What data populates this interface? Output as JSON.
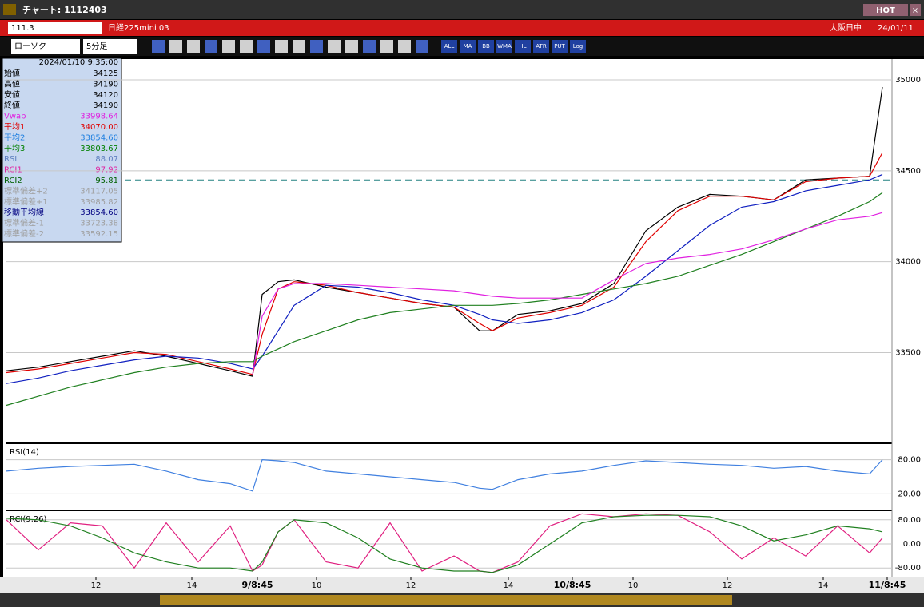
{
  "window": {
    "title": "チャート: 1112403",
    "badge": "HOT"
  },
  "toolbar": {
    "code": "111.3",
    "name": "日経225mini 03",
    "session": "大阪日中",
    "date": "24/01/11",
    "chart_kind": "ローソク",
    "interval": "5分足",
    "icons": [
      "ALL",
      "MA",
      "BB",
      "WMA",
      "HL",
      "ATR",
      "PUT",
      "Log"
    ]
  },
  "info_panel": {
    "timestamp": "2024/01/10 9:35:00",
    "rows": [
      {
        "label": "始値",
        "value": "34125",
        "color": "#000000"
      },
      {
        "label": "高値",
        "value": "34190",
        "color": "#000000"
      },
      {
        "label": "安値",
        "value": "34120",
        "color": "#000000"
      },
      {
        "label": "終値",
        "value": "34190",
        "color": "#000000"
      },
      {
        "label": "Vwap",
        "value": "33998.64",
        "color": "#e020e0"
      },
      {
        "label": "平均1",
        "value": "34070.00",
        "color": "#e00000"
      },
      {
        "label": "平均2",
        "value": "33854.60",
        "color": "#2080e0"
      },
      {
        "label": "平均3",
        "value": "33803.67",
        "color": "#008000"
      },
      {
        "label": "RSI",
        "value": "88.07",
        "color": "#6080c0"
      },
      {
        "label": "RCI1",
        "value": "97.92",
        "color": "#e020a0"
      },
      {
        "label": "RCI2",
        "value": "95.81",
        "color": "#006000"
      },
      {
        "label": "標準偏差+2",
        "value": "34117.05",
        "color": "#a0a0a0"
      },
      {
        "label": "標準偏差+1",
        "value": "33985.82",
        "color": "#a0a0a0"
      },
      {
        "label": "移動平均線",
        "value": "33854.60",
        "color": "#000080"
      },
      {
        "label": "標準偏差-1",
        "value": "33723.38",
        "color": "#a0a0a0"
      },
      {
        "label": "標準偏差-2",
        "value": "33592.15",
        "color": "#a0a0a0"
      }
    ]
  },
  "chart_data": [
    {
      "type": "line",
      "panel": "price",
      "xlim": [
        0,
        277
      ],
      "ylim": [
        33010,
        35110
      ],
      "yticks": [
        35000,
        34500,
        34000,
        33500
      ],
      "reference_line": 34450,
      "x": [
        0,
        10,
        20,
        30,
        40,
        50,
        60,
        70,
        77,
        80,
        85,
        90,
        100,
        110,
        120,
        130,
        140,
        148,
        152,
        160,
        170,
        180,
        190,
        200,
        210,
        220,
        230,
        240,
        250,
        260,
        270,
        274
      ],
      "series": [
        {
          "color": "#000000",
          "values": [
            33400,
            33420,
            33450,
            33480,
            33510,
            33480,
            33440,
            33400,
            33370,
            33820,
            33890,
            33900,
            33860,
            33830,
            33800,
            33770,
            33750,
            33620,
            33620,
            33710,
            33730,
            33770,
            33880,
            34170,
            34300,
            34370,
            34360,
            34340,
            34450,
            34460,
            34470,
            34960
          ]
        },
        {
          "color": "#e00000",
          "values": [
            33390,
            33410,
            33440,
            33470,
            33500,
            33490,
            33450,
            33410,
            33380,
            33600,
            33850,
            33890,
            33870,
            33830,
            33800,
            33770,
            33750,
            33660,
            33620,
            33690,
            33720,
            33760,
            33860,
            34110,
            34280,
            34360,
            34360,
            34340,
            34440,
            34460,
            34470,
            34600
          ]
        },
        {
          "color": "#1020c0",
          "values": [
            33330,
            33360,
            33400,
            33430,
            33460,
            33480,
            33470,
            33440,
            33410,
            33480,
            33620,
            33760,
            33870,
            33860,
            33830,
            33790,
            33760,
            33710,
            33680,
            33660,
            33680,
            33720,
            33790,
            33920,
            34060,
            34200,
            34300,
            34330,
            34390,
            34420,
            34450,
            34480
          ]
        },
        {
          "color": "#208020",
          "values": [
            33210,
            33260,
            33310,
            33350,
            33390,
            33420,
            33440,
            33450,
            33450,
            33480,
            33520,
            33560,
            33620,
            33680,
            33720,
            33740,
            33760,
            33760,
            33760,
            33770,
            33790,
            33820,
            33850,
            33880,
            33920,
            33980,
            34040,
            34110,
            34180,
            34250,
            34330,
            34380
          ]
        },
        {
          "color": "#e020e0",
          "values": [
            null,
            null,
            null,
            null,
            null,
            null,
            null,
            null,
            33380,
            33700,
            33850,
            33880,
            33880,
            33870,
            33860,
            33850,
            33840,
            33820,
            33810,
            33800,
            33800,
            33800,
            33900,
            33990,
            34020,
            34040,
            34070,
            34120,
            34180,
            34230,
            34250,
            34270
          ]
        }
      ]
    },
    {
      "type": "line",
      "panel": "rsi",
      "title": "RSI(14)",
      "xlim": [
        0,
        277
      ],
      "ylim": [
        -6,
        106
      ],
      "yticks": [
        {
          "value": 80,
          "label": "80.00"
        },
        {
          "value": 20,
          "label": "20.00"
        }
      ],
      "x": [
        0,
        10,
        20,
        30,
        40,
        50,
        60,
        70,
        77,
        80,
        85,
        90,
        100,
        110,
        120,
        130,
        140,
        148,
        152,
        160,
        170,
        180,
        190,
        200,
        210,
        220,
        230,
        240,
        250,
        260,
        270,
        274
      ],
      "series": [
        {
          "color": "#4080e0",
          "values": [
            60,
            65,
            68,
            70,
            72,
            60,
            45,
            38,
            25,
            80,
            78,
            75,
            60,
            55,
            50,
            45,
            40,
            30,
            28,
            45,
            55,
            60,
            70,
            78,
            75,
            72,
            70,
            65,
            68,
            60,
            55,
            80
          ]
        }
      ]
    },
    {
      "type": "line",
      "panel": "rci",
      "title": "RCI(9,26)",
      "xlim": [
        0,
        277
      ],
      "ylim": [
        -106,
        106
      ],
      "yticks": [
        {
          "value": 80,
          "label": "80.00"
        },
        {
          "value": 0,
          "label": "0.00"
        },
        {
          "value": -80,
          "label": "-80.00"
        }
      ],
      "x": [
        0,
        10,
        20,
        30,
        40,
        50,
        60,
        70,
        77,
        80,
        85,
        90,
        100,
        110,
        120,
        130,
        140,
        148,
        152,
        160,
        170,
        180,
        190,
        200,
        210,
        220,
        230,
        240,
        250,
        260,
        270,
        274
      ],
      "series": [
        {
          "color": "#e02080",
          "values": [
            80,
            -20,
            70,
            60,
            -80,
            70,
            -60,
            60,
            -90,
            -70,
            40,
            80,
            -60,
            -80,
            70,
            -90,
            -40,
            -90,
            -95,
            -60,
            60,
            100,
            90,
            100,
            95,
            40,
            -50,
            20,
            -40,
            60,
            -30,
            20
          ]
        },
        {
          "color": "#208020",
          "values": [
            85,
            80,
            60,
            20,
            -30,
            -60,
            -80,
            -80,
            -90,
            -60,
            40,
            80,
            70,
            20,
            -50,
            -80,
            -90,
            -90,
            -95,
            -70,
            0,
            70,
            90,
            95,
            95,
            90,
            60,
            10,
            30,
            60,
            50,
            40
          ]
        }
      ]
    }
  ],
  "x_axis": {
    "ticks": [
      {
        "value": 28,
        "label": "12"
      },
      {
        "value": 58,
        "label": "14"
      },
      {
        "value": 78.5,
        "label": "9/8:45"
      },
      {
        "value": 97,
        "label": "10"
      },
      {
        "value": 126.5,
        "label": "12"
      },
      {
        "value": 157,
        "label": "14"
      },
      {
        "value": 177,
        "label": "10/8:45"
      },
      {
        "value": 196,
        "label": "10"
      },
      {
        "value": 225.5,
        "label": "12"
      },
      {
        "value": 255.5,
        "label": "14"
      },
      {
        "value": 275.5,
        "label": "11/8:45"
      }
    ]
  }
}
